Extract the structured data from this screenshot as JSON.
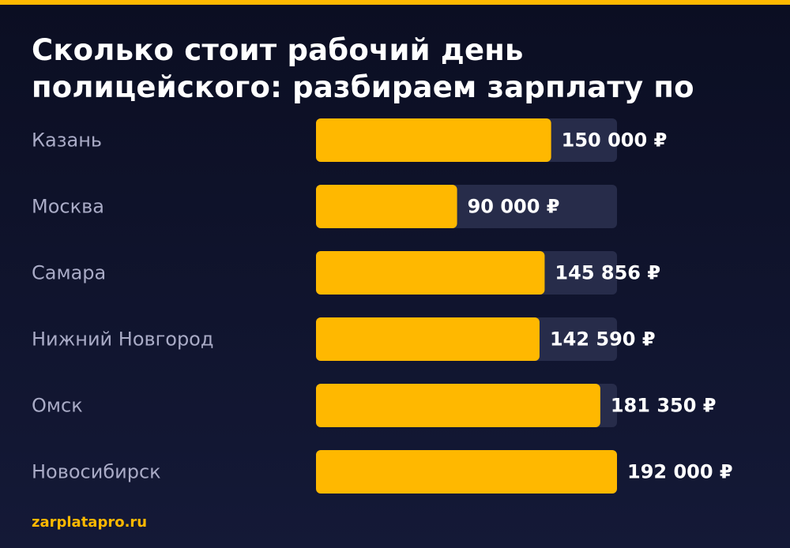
{
  "title": "Сколько стоит рабочий день полицейского: разбираем зарплату по",
  "footer": "zarplatapro.ru",
  "colors": {
    "accent": "#ffb800",
    "track": "#272c4a",
    "background_top": "#0b0e22",
    "background_bottom": "#141937",
    "label": "#a9abc6",
    "value": "#ffffff"
  },
  "chart_data": {
    "type": "bar",
    "orientation": "horizontal",
    "categories": [
      "Казань",
      "Москва",
      "Самара",
      "Нижний Новгород",
      "Омск",
      "Новосибирск"
    ],
    "values": [
      150000,
      90000,
      145856,
      142590,
      181350,
      192000
    ],
    "value_labels": [
      "150 000 ₽",
      "90 000 ₽",
      "145 856 ₽",
      "142 590 ₽",
      "181 350 ₽",
      "192 000 ₽"
    ],
    "xlim": [
      0,
      192000
    ],
    "grid": false,
    "legend": "none"
  }
}
